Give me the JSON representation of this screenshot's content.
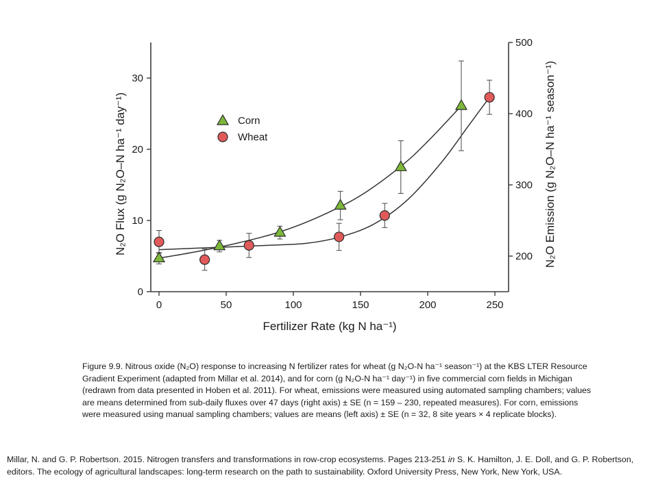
{
  "chart_data": {
    "type": "scatter",
    "xlabel": "Fertilizer Rate (kg N ha⁻¹)",
    "ylabel_left": "N₂O Flux (g N₂O–N ha⁻¹ day⁻¹)",
    "ylabel_right": "N₂O Emission (g N₂O–N ha⁻¹ season⁻¹)",
    "xlim": [
      -5,
      260
    ],
    "x_ticks": [
      0,
      50,
      100,
      150,
      200,
      250
    ],
    "ylim_left": [
      0,
      35
    ],
    "y_ticks_left": [
      0,
      10,
      20,
      30
    ],
    "ylim_right": [
      150,
      500
    ],
    "y_ticks_right": [
      200,
      300,
      400,
      500
    ],
    "grid": false,
    "legend_position": "upper-left",
    "series": [
      {
        "name": "Corn",
        "marker": "triangle",
        "color": "#7db83a",
        "axis": "left",
        "x": [
          0,
          45,
          90,
          135,
          180,
          225
        ],
        "y": [
          4.7,
          6.4,
          8.3,
          12.1,
          17.5,
          26.1
        ],
        "err": [
          0.8,
          0.8,
          0.9,
          2.0,
          3.7,
          6.3
        ]
      },
      {
        "name": "Wheat",
        "marker": "circle",
        "color": "#e05a5a",
        "axis": "right",
        "x": [
          0,
          34,
          67,
          134,
          168,
          246
        ],
        "y": [
          220,
          195,
          215,
          227,
          257,
          423
        ],
        "err": [
          16,
          15,
          17,
          19,
          17,
          24
        ]
      }
    ],
    "fit_curves": [
      {
        "series": "Corn",
        "x": [
          0,
          30,
          60,
          90,
          120,
          150,
          180,
          200,
          225
        ],
        "y": [
          4.7,
          5.7,
          6.9,
          8.4,
          10.6,
          13.5,
          17.6,
          21.1,
          26.1
        ]
      },
      {
        "series": "Wheat",
        "x": [
          0,
          40,
          80,
          110,
          135,
          160,
          185,
          210,
          230,
          246
        ],
        "y": [
          209,
          212,
          215,
          218,
          227,
          245,
          279,
          331,
          382,
          423
        ]
      }
    ]
  },
  "caption": "Figure 9.9. Nitrous oxide (N₂O) response to increasing N fertilizer rates for wheat (g N₂O-N ha⁻¹ season⁻¹) at the KBS LTER Resource Gradient Experiment (adapted from Millar et al. 2014), and for corn (g N₂O-N ha⁻¹ day⁻¹) in five commercial corn fields in Michigan (redrawn from data presented in Hoben et al. 2011). For wheat, emissions were measured using automated sampling chambers; values are means determined from sub-daily fluxes over 47 days (right axis) ± SE (n = 159 – 230, repeated measures). For corn, emissions were measured using manual sampling chambers; values are means (left axis) ± SE (n = 32, 8 site years × 4 replicate blocks).",
  "citation": {
    "before": "Millar, N. and G. P. Robertson. 2015. Nitrogen transfers and transformations in row-crop ecosystems. Pages 213-251 ",
    "in_word": "in",
    "after": " S. K. Hamilton, J. E. Doll, and G. P. Robertson, editors. The ecology of agricultural landscapes: long-term research on the path to sustainability. Oxford University Press, New York, New York, USA."
  }
}
